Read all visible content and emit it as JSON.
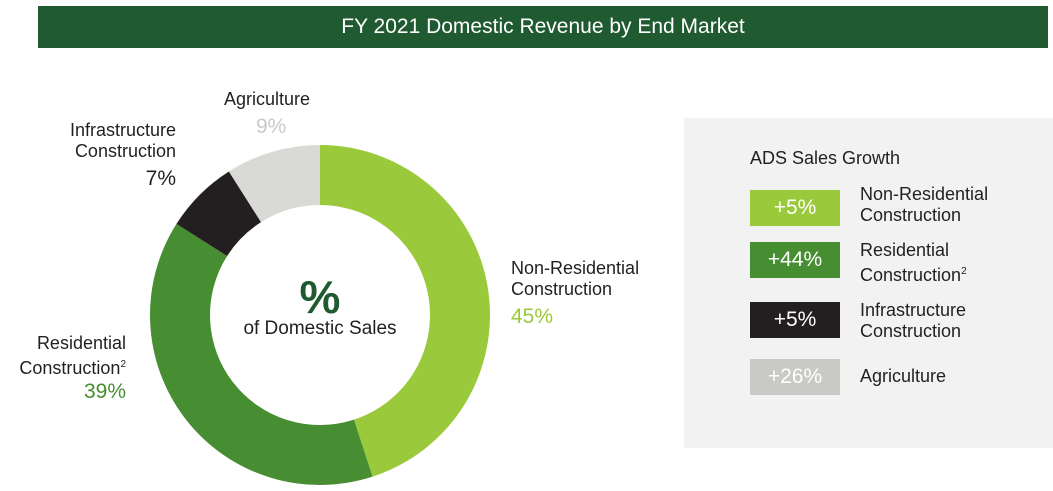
{
  "chart_data": {
    "type": "pie",
    "title": "FY 2021 Domestic Revenue by End Market",
    "center": {
      "symbol": "%",
      "caption": "of Domestic Sales"
    },
    "segments": [
      {
        "line1": "Non-Residential",
        "line2": "Construction",
        "pct_label": "45%",
        "value": 45,
        "color": "#9bc93c"
      },
      {
        "line1": "Residential",
        "line2": "Construction",
        "sup": "2",
        "pct_label": "39%",
        "value": 39,
        "color": "#478d32"
      },
      {
        "line1": "Infrastructure",
        "line2": "Construction",
        "pct_label": "7%",
        "value": 7,
        "color": "#231f20"
      },
      {
        "line1": "Agriculture",
        "line2": "",
        "pct_label": "9%",
        "value": 9,
        "color": "#d9d9d6"
      }
    ]
  },
  "growth": {
    "title": "ADS Sales Growth",
    "items": [
      {
        "value": "+5%",
        "line1": "Non-Residential",
        "line2": "Construction",
        "color": "#9bc93c"
      },
      {
        "value": "+44%",
        "line1": "Residential",
        "line2": "Construction",
        "sup": "2",
        "color": "#478d32"
      },
      {
        "value": "+5%",
        "line1": "Infrastructure",
        "line2": "Construction",
        "color": "#231f20"
      },
      {
        "value": "+26%",
        "line1": "Agriculture",
        "line2": "",
        "color": "#c9c9c6"
      }
    ]
  },
  "colors": {
    "title_bg": "#1f5a30",
    "panel_bg": "#f2f2f2"
  }
}
